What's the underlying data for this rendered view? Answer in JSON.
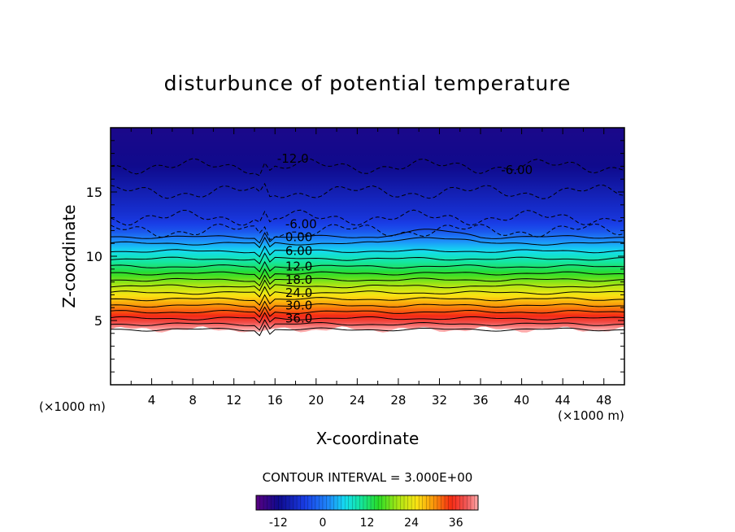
{
  "chart_data": {
    "type": "heatmap",
    "title": "disturbunce of potential temperature",
    "xlabel": "X-coordinate",
    "ylabel": "Z-coordinate",
    "x_unit": "(×1000 m)",
    "y_unit": "(×1000 m)",
    "xlim": [
      0,
      50
    ],
    "ylim": [
      0,
      20
    ],
    "x_ticks": [
      "4",
      "8",
      "12",
      "16",
      "20",
      "24",
      "28",
      "32",
      "36",
      "40",
      "44",
      "48"
    ],
    "y_ticks": [
      "5",
      "10",
      "15"
    ],
    "contour_interval_text": "CONTOUR INTERVAL = 3.000E+00",
    "contour_interval": 3.0,
    "contour_labels": [
      "-12.0",
      "-6.00",
      "-6.00",
      "0.00",
      "6.00",
      "12.0",
      "18.0",
      "24.0",
      "30.0",
      "36.0"
    ],
    "colorbar": {
      "ticks": [
        "-12",
        "0",
        "12",
        "24",
        "36"
      ],
      "range": [
        -18,
        42
      ]
    },
    "field_profile": {
      "z": [
        4.3,
        5.0,
        6.0,
        7.0,
        8.0,
        9.0,
        10.0,
        11.0,
        12.0,
        13.0,
        15.0,
        17.0,
        20.0
      ],
      "value": [
        42,
        37,
        31,
        25,
        19,
        13,
        8,
        3,
        -3,
        -6,
        -9,
        -12,
        -13
      ]
    },
    "data_bottom_z": 4.3,
    "colors": {
      "background": "#ffffff",
      "low": "#2020d0",
      "high": "#f08080"
    }
  }
}
